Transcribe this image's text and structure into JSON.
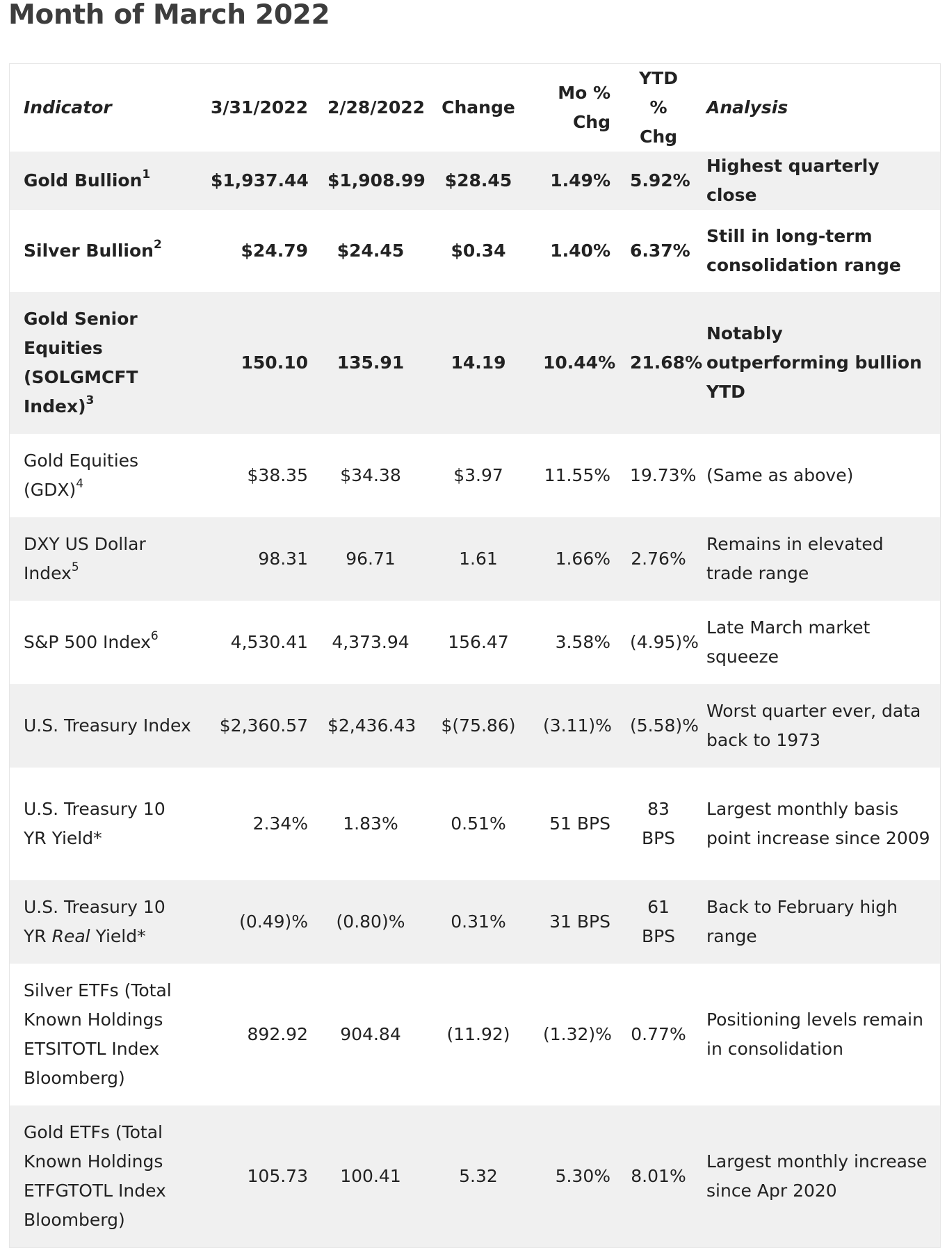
{
  "title": "Month of March 2022",
  "headers": {
    "indicator": "Indicator",
    "date1": "3/31/2022",
    "date2": "2/28/2022",
    "change": "Change",
    "mo_line1": "Mo %",
    "mo_line2": "Chg",
    "ytd_line1": "YTD %",
    "ytd_line2": "Chg",
    "analysis": "Analysis"
  },
  "rows": [
    {
      "indicator": "Gold Bullion",
      "sup": "1",
      "v1": "$1,937.44",
      "v2": "$1,908.99",
      "change": "$28.45",
      "mo": "1.49%",
      "ytd": "5.92%",
      "analysis": "Highest quarterly close"
    },
    {
      "indicator": "Silver Bullion",
      "sup": "2",
      "v1": "$24.79",
      "v2": "$24.45",
      "change": "$0.34",
      "mo": "1.40%",
      "ytd": "6.37%",
      "analysis": "Still in long-term consolidation range"
    },
    {
      "indicator": "Gold Senior Equities (SOLGMCFT Index)",
      "sup": "3",
      "v1": "150.10",
      "v2": "135.91",
      "change": "14.19",
      "mo": "10.44%",
      "ytd": "21.68%",
      "analysis": "Notably outperforming bullion YTD"
    },
    {
      "indicator": "Gold Equities (GDX)",
      "sup": "4",
      "v1": "$38.35",
      "v2": "$34.38",
      "change": "$3.97",
      "mo": "11.55%",
      "ytd": "19.73%",
      "analysis": "(Same as above)"
    },
    {
      "indicator": "DXY US Dollar Index",
      "sup": "5",
      "v1": "98.31",
      "v2": "96.71",
      "change": "1.61",
      "mo": "1.66%",
      "ytd": "2.76%",
      "analysis": "Remains in elevated trade range"
    },
    {
      "indicator": "S&P 500 Index",
      "sup": "6",
      "v1": "4,530.41",
      "v2": "4,373.94",
      "change": "156.47",
      "mo": "3.58%",
      "ytd": "(4.95)%",
      "analysis": "Late March market squeeze"
    },
    {
      "indicator": "U.S. Treasury Index",
      "v1": "$2,360.57",
      "v2": "$2,436.43",
      "change": "$(75.86)",
      "mo": "(3.11)%",
      "ytd": "(5.58)%",
      "analysis": "Worst quarter ever, data back to 1973"
    },
    {
      "indicator": "U.S. Treasury 10 YR Yield*",
      "v1": "2.34%",
      "v2": "1.83%",
      "change": "0.51%",
      "mo": "51 BPS",
      "ytd": "83 BPS",
      "analysis": "Largest monthly basis point increase since 2009"
    },
    {
      "indicator_pre": "U.S. Treasury 10 YR",
      "indicator_em": "Real",
      "indicator_post": "Yield*",
      "v1": "(0.49)%",
      "v2": "(0.80)%",
      "change": "0.31%",
      "mo": "31 BPS",
      "ytd": "61 BPS",
      "analysis": "Back to February high range"
    },
    {
      "indicator": "Silver ETFs (Total Known Holdings ETSITOTL Index Bloomberg)",
      "v1": "892.92",
      "v2": "904.84",
      "change": "(11.92)",
      "mo": "(1.32)%",
      "ytd": "0.77%",
      "analysis": "Positioning levels remain in consolidation"
    },
    {
      "indicator": "Gold ETFs (Total Known Holdings ETFGTOTL Index Bloomberg)",
      "v1": "105.73",
      "v2": "100.41",
      "change": "5.32",
      "mo": "5.30%",
      "ytd": "8.01%",
      "analysis": "Largest monthly increase since Apr 2020"
    }
  ]
}
